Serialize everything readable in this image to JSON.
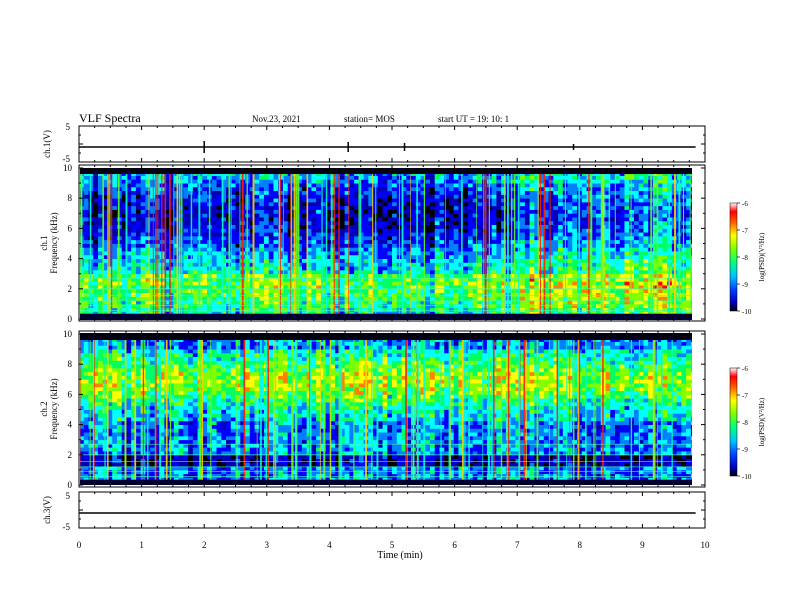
{
  "header": {
    "title": "VLF Spectra",
    "date": "Nov.23, 2021",
    "station": "station= MOS",
    "start_ut": "start  UT =   19: 10: 1"
  },
  "chart_data": [
    {
      "type": "line",
      "id": "ch1-waveform",
      "ylabel": "ch.1(V)",
      "ylim": [
        -5,
        5
      ],
      "yticks": [
        "5",
        "-5"
      ],
      "series": [
        {
          "values_note": "",
          "x": [
            0,
            9.85
          ],
          "y": [
            0,
            0
          ]
        }
      ]
    },
    {
      "type": "heatmap",
      "id": "ch1-spectrogram",
      "ylabel_top": "ch.1",
      "ylabel": "Frequency (kHz)",
      "ylim": [
        0,
        10
      ],
      "xlim": [
        0,
        10
      ],
      "yticks": [
        "0",
        "2",
        "4",
        "6",
        "8",
        "10"
      ],
      "data_extent_min": 9.85,
      "colorbar": {
        "label": "log(PSD)(V²/Hz)",
        "range": [
          -10,
          -6
        ],
        "ticks": [
          "-6",
          "-7",
          "-8",
          "-9",
          "-10"
        ]
      }
    },
    {
      "type": "heatmap",
      "id": "ch2-spectrogram",
      "ylabel_top": "ch.2",
      "ylabel": "Frequency (kHz)",
      "ylim": [
        0,
        10
      ],
      "xlim": [
        0,
        10
      ],
      "yticks": [
        "0",
        "2",
        "4",
        "6",
        "8",
        "10"
      ],
      "data_extent_min": 9.85,
      "colorbar": {
        "label": "log(PSD)(V²/Hz)",
        "range": [
          -10,
          -6
        ],
        "ticks": [
          "-6",
          "-7",
          "-8",
          "-9",
          "-10"
        ]
      }
    },
    {
      "type": "line",
      "id": "ch3-waveform",
      "ylabel": "ch.3(V)",
      "ylim": [
        -5,
        5
      ],
      "yticks": [
        "5",
        "-5"
      ],
      "xlabel": "Time  (min)",
      "xlim": [
        0,
        10
      ],
      "xticks": [
        "0",
        "1",
        "2",
        "3",
        "4",
        "5",
        "6",
        "7",
        "8",
        "9",
        "10"
      ]
    }
  ],
  "colors": {
    "colormap": [
      "#000000",
      "#0000b0",
      "#0000ff",
      "#0080ff",
      "#00ffff",
      "#00ff60",
      "#80ff00",
      "#ffff00",
      "#ff8000",
      "#ff0000",
      "#ffffff"
    ]
  }
}
